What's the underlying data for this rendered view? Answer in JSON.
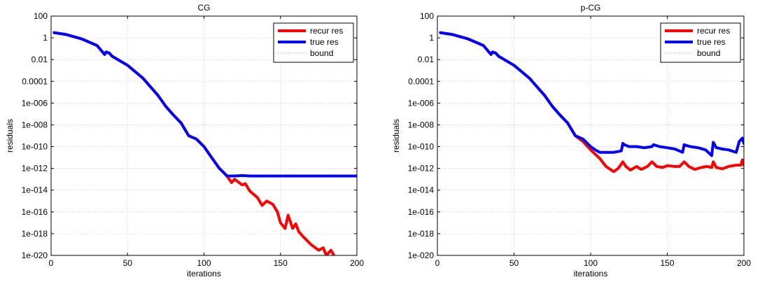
{
  "chart_data": [
    {
      "type": "line",
      "title": "CG",
      "xlabel": "iterations",
      "ylabel": "residuals",
      "xlim": [
        0,
        200
      ],
      "ylim": [
        1e-20,
        100
      ],
      "yscale": "log",
      "xticks": [
        "0",
        "50",
        "100",
        "150",
        "200"
      ],
      "yticks": [
        "100",
        "1",
        "0.01",
        "0.0001",
        "1e-006",
        "1e-008",
        "1e-010",
        "1e-012",
        "1e-014",
        "1e-016",
        "1e-018",
        "1e-020"
      ],
      "grid": true,
      "legend_position": "top-right",
      "series": [
        {
          "name": "recur res",
          "color": "#ff0000",
          "x": [
            2,
            10,
            20,
            30,
            35,
            36,
            38,
            40,
            50,
            60,
            70,
            75,
            80,
            85,
            90,
            95,
            100,
            105,
            110,
            115,
            118,
            120,
            125,
            127,
            130,
            135,
            138,
            141,
            145,
            148,
            150,
            153,
            155,
            158,
            160,
            162,
            165,
            170,
            175,
            178,
            180,
            183,
            185
          ],
          "y": [
            3,
            2,
            0.8,
            0.2,
            0.03,
            0.05,
            0.04,
            0.02,
            0.003,
            0.0002,
            5e-06,
            5e-07,
            8e-08,
            1.5e-08,
            1e-09,
            5e-10,
            1e-10,
            1e-11,
            1e-12,
            2e-13,
            5e-14,
            1e-13,
            3e-14,
            4e-14,
            8e-15,
            2e-15,
            4e-16,
            1e-15,
            5e-16,
            1e-16,
            1e-17,
            3e-18,
            5e-17,
            3e-18,
            8e-18,
            1.5e-18,
            5e-19,
            1e-19,
            3e-20,
            5e-20,
            1e-20,
            3e-20,
            1e-20
          ]
        },
        {
          "name": "true res",
          "color": "#0000ff",
          "x": [
            2,
            10,
            20,
            30,
            35,
            36,
            38,
            40,
            50,
            60,
            70,
            75,
            80,
            85,
            90,
            95,
            100,
            105,
            110,
            113,
            115,
            120,
            125,
            130,
            140,
            150,
            160,
            170,
            180,
            190,
            200
          ],
          "y": [
            3,
            2,
            0.8,
            0.2,
            0.03,
            0.05,
            0.04,
            0.02,
            0.003,
            0.0002,
            5e-06,
            5e-07,
            8e-08,
            1.5e-08,
            1e-09,
            5e-10,
            1e-10,
            1e-11,
            1e-12,
            4e-13,
            2e-13,
            2e-13,
            2.2e-13,
            2e-13,
            2e-13,
            2e-13,
            2e-13,
            2e-13,
            2e-13,
            2e-13,
            2e-13
          ]
        },
        {
          "name": "bound",
          "color": "#999999",
          "dotted": true,
          "x": [],
          "y": []
        }
      ]
    },
    {
      "type": "line",
      "title": "p-CG",
      "xlabel": "iterations",
      "ylabel": "residuals",
      "xlim": [
        0,
        200
      ],
      "ylim": [
        1e-20,
        100
      ],
      "yscale": "log",
      "xticks": [
        "0",
        "50",
        "100",
        "150",
        "200"
      ],
      "yticks": [
        "100",
        "1",
        "0.01",
        "0.0001",
        "1e-006",
        "1e-008",
        "1e-010",
        "1e-012",
        "1e-014",
        "1e-016",
        "1e-018",
        "1e-020"
      ],
      "grid": true,
      "legend_position": "top-right",
      "series": [
        {
          "name": "recur res",
          "color": "#ff0000",
          "x": [
            2,
            10,
            20,
            30,
            35,
            36,
            38,
            40,
            50,
            60,
            70,
            75,
            80,
            85,
            90,
            95,
            100,
            103,
            106,
            110,
            115,
            118,
            121,
            123,
            126,
            130,
            133,
            137,
            140,
            141,
            143,
            147,
            150,
            155,
            158,
            161,
            162,
            164,
            168,
            172,
            176,
            179,
            180,
            182,
            186,
            190,
            195,
            198,
            199,
            200
          ],
          "y": [
            3,
            2,
            0.8,
            0.2,
            0.03,
            0.05,
            0.04,
            0.02,
            0.003,
            0.0002,
            5e-06,
            5e-07,
            8e-08,
            1.5e-08,
            1e-09,
            3e-10,
            5e-11,
            2e-11,
            8e-12,
            1.5e-12,
            5e-13,
            1e-12,
            4e-12,
            1.5e-12,
            7e-13,
            1.5e-12,
            8e-13,
            1.5e-12,
            4e-12,
            3e-12,
            1.5e-12,
            1.2e-12,
            1.8e-12,
            1.5e-12,
            1.5e-12,
            4e-12,
            3e-12,
            1.5e-12,
            8e-13,
            1.2e-12,
            1.5e-12,
            1.2e-12,
            4e-12,
            1.2e-12,
            9e-13,
            1.5e-12,
            2e-12,
            2e-12,
            6e-12,
            2e-12
          ]
        },
        {
          "name": "true res",
          "color": "#0000ff",
          "x": [
            2,
            10,
            20,
            30,
            35,
            36,
            38,
            40,
            50,
            60,
            70,
            75,
            80,
            85,
            90,
            95,
            100,
            103,
            106,
            110,
            115,
            120,
            121,
            122,
            125,
            130,
            135,
            140,
            141,
            145,
            150,
            155,
            160,
            161,
            163,
            165,
            170,
            175,
            179,
            180,
            182,
            186,
            190,
            195,
            197,
            199,
            200
          ],
          "y": [
            3,
            2,
            0.8,
            0.2,
            0.03,
            0.05,
            0.04,
            0.02,
            0.003,
            0.0002,
            5e-06,
            5e-07,
            8e-08,
            1.5e-08,
            1e-09,
            5e-10,
            1e-10,
            5e-11,
            3e-11,
            3e-11,
            3e-11,
            4e-11,
            2e-10,
            1.5e-10,
            1e-10,
            1e-10,
            8e-11,
            1e-10,
            1.5e-10,
            1e-10,
            8e-11,
            6e-11,
            3e-11,
            1.5e-10,
            1.2e-10,
            1e-10,
            8e-11,
            5e-11,
            1.5e-11,
            2.5e-10,
            8e-11,
            6e-11,
            5e-11,
            3e-11,
            3e-10,
            6e-10,
            2e-10
          ]
        },
        {
          "name": "bound",
          "color": "#999999",
          "dotted": true,
          "x": [],
          "y": []
        }
      ]
    }
  ]
}
